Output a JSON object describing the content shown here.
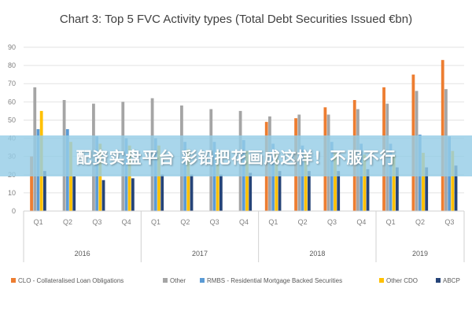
{
  "overlay_text": "配资实盘平台 彩铅把花画成这样！不服不行",
  "chart_data": {
    "type": "bar",
    "title": "Chart 3: Top 5 FVC Activity types (Total Debt Securities Issued €bn)",
    "xlabel": "",
    "ylabel": "",
    "ylim": [
      0,
      90
    ],
    "yticks": [
      0,
      10,
      20,
      30,
      40,
      50,
      60,
      70,
      80,
      90
    ],
    "grid": true,
    "legend_position": "bottom",
    "categories": [
      "Q1",
      "Q2",
      "Q3",
      "Q4",
      "Q1",
      "Q2",
      "Q3",
      "Q4",
      "Q1",
      "Q2",
      "Q3",
      "Q4",
      "Q1",
      "Q2",
      "Q3"
    ],
    "years": [
      {
        "label": "2016",
        "count": 4
      },
      {
        "label": "2017",
        "count": 4
      },
      {
        "label": "2018",
        "count": 4
      },
      {
        "label": "2019",
        "count": 3
      }
    ],
    "series": [
      {
        "name": "CLO - Collateralised Loan Obligations",
        "color": "#ED7D31",
        "values": [
          30,
          0,
          0,
          0,
          0,
          0,
          0,
          0,
          49,
          51,
          57,
          61,
          68,
          75,
          83
        ]
      },
      {
        "name": "Other",
        "color": "#A5A5A5",
        "values": [
          68,
          61,
          59,
          60,
          62,
          58,
          56,
          55,
          52,
          53,
          53,
          56,
          59,
          66,
          67
        ]
      },
      {
        "name": "RMBS - Residential Mortgage Backed Securities",
        "color": "#5B9BD5",
        "values": [
          45,
          45,
          41,
          40,
          40,
          38,
          38,
          39,
          37,
          36,
          38,
          37,
          37,
          42,
          41
        ]
      },
      {
        "name": "Other CDO",
        "color": "#FFC000",
        "values": [
          55,
          38,
          37,
          36,
          36,
          34,
          33,
          33,
          32,
          32,
          32,
          31,
          31,
          32,
          33
        ]
      },
      {
        "name": "ABCP",
        "color": "#264478",
        "values": [
          22,
          19,
          17,
          18,
          20,
          20,
          20,
          21,
          22,
          22,
          22,
          23,
          24,
          24,
          25
        ]
      }
    ]
  }
}
